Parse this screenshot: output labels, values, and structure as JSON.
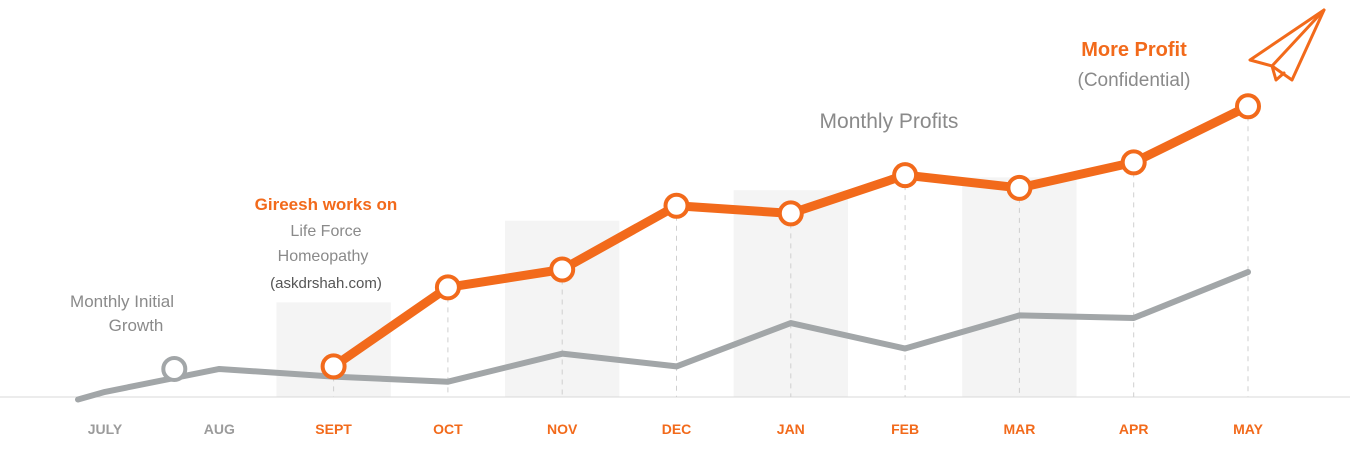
{
  "chart_data": {
    "type": "line",
    "categories": [
      "JULY",
      "AUG",
      "SEPT",
      "OCT",
      "NOV",
      "DEC",
      "JAN",
      "FEB",
      "MAR",
      "APR",
      "MAY"
    ],
    "series": [
      {
        "name": "Monthly Profits",
        "color": "#f26a1b",
        "values": [
          null,
          null,
          12,
          43,
          50,
          75,
          72,
          87,
          82,
          92,
          114
        ]
      },
      {
        "name": "Monthly Initial Growth",
        "color": "#a2a6a8",
        "values": [
          2,
          11,
          8,
          6,
          17,
          12,
          29,
          19,
          32,
          31,
          49
        ]
      }
    ],
    "ylim": [
      0,
      140
    ],
    "grid": false,
    "tick_colors": {
      "inactive": "#9b9b9b",
      "active": "#f26a1b"
    },
    "active_from_index": 2,
    "shaded_months": [
      "SEPT",
      "NOV",
      "JAN",
      "MAR"
    ],
    "annotations": {
      "initial_growth": [
        "Monthly Initial",
        "Growth"
      ],
      "gireesh_title": "Gireesh works on",
      "gireesh_lines": [
        "Life Force",
        "Homeopathy",
        "(askdrshah.com)"
      ],
      "monthly_profits": "Monthly Profits",
      "more_profit": "More Profit",
      "confidential": "(Confidential)"
    },
    "icon": "paper-plane-icon"
  }
}
